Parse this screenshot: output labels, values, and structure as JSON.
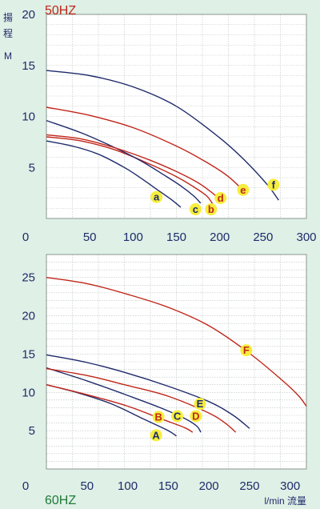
{
  "chart_data": [
    {
      "type": "line",
      "title": "50HZ",
      "ylabel": "揚\n程\nM",
      "xlabel": "",
      "xlim": [
        0,
        300
      ],
      "ylim": [
        0,
        20
      ],
      "xticks": [
        0,
        50,
        100,
        150,
        200,
        250,
        300
      ],
      "yticks": [
        5,
        10,
        15,
        20
      ],
      "grid": true,
      "colors": {
        "navy": "#1f2a6b",
        "red": "#c0261a",
        "badge": "#f6ee3c",
        "title": "#c0261a"
      },
      "series": [
        {
          "name": "a",
          "color": "navy",
          "x": [
            0,
            30,
            60,
            90,
            110,
            130,
            145,
            155
          ],
          "y": [
            7.6,
            7.1,
            6.3,
            5.0,
            3.9,
            2.7,
            1.8,
            1.1
          ]
        },
        {
          "name": "b",
          "color": "red",
          "x": [
            0,
            40,
            80,
            120,
            150,
            170,
            185,
            192
          ],
          "y": [
            8.0,
            7.6,
            6.7,
            5.3,
            4.1,
            3.1,
            2.2,
            1.4
          ]
        },
        {
          "name": "c",
          "color": "navy",
          "x": [
            0,
            40,
            80,
            110,
            135,
            155,
            170,
            178
          ],
          "y": [
            9.6,
            8.4,
            6.9,
            5.6,
            4.3,
            3.2,
            2.2,
            1.5
          ]
        },
        {
          "name": "d",
          "color": "red",
          "x": [
            0,
            40,
            80,
            120,
            150,
            175,
            190,
            200
          ],
          "y": [
            8.2,
            7.8,
            6.9,
            5.7,
            4.6,
            3.5,
            2.6,
            1.9
          ]
        },
        {
          "name": "e",
          "color": "red",
          "x": [
            0,
            50,
            100,
            150,
            185,
            210,
            230
          ],
          "y": [
            10.9,
            10.1,
            8.9,
            7.1,
            5.5,
            4.1,
            2.5
          ]
        },
        {
          "name": "f",
          "color": "navy",
          "x": [
            0,
            50,
            100,
            150,
            200,
            230,
            255,
            268
          ],
          "y": [
            14.5,
            14.0,
            12.9,
            11.0,
            7.9,
            5.6,
            3.3,
            1.8
          ]
        }
      ],
      "labels": [
        {
          "text": "a",
          "x": 127,
          "y": 2.1,
          "color": "navy"
        },
        {
          "text": "c",
          "x": 172,
          "y": 0.9,
          "color": "navy"
        },
        {
          "text": "b",
          "x": 190,
          "y": 0.9,
          "color": "red"
        },
        {
          "text": "d",
          "x": 201,
          "y": 2.0,
          "color": "red"
        },
        {
          "text": "e",
          "x": 227,
          "y": 2.8,
          "color": "red"
        },
        {
          "text": "f",
          "x": 262,
          "y": 3.3,
          "color": "navy"
        }
      ]
    },
    {
      "type": "line",
      "title": "60HZ",
      "ylabel": "",
      "xlabel": "l/min 流量",
      "xlim": [
        0,
        320
      ],
      "ylim": [
        0,
        28
      ],
      "xticks": [
        0,
        50,
        100,
        150,
        200,
        250,
        300
      ],
      "yticks": [
        5,
        10,
        15,
        20,
        25
      ],
      "grid": true,
      "colors": {
        "navy": "#1f2a6b",
        "red": "#c0261a",
        "badge": "#f6ee3c",
        "title": "#1e7a3a"
      },
      "series": [
        {
          "name": "A",
          "color": "navy",
          "x": [
            0,
            40,
            80,
            120,
            150,
            160
          ],
          "y": [
            11.0,
            9.9,
            8.5,
            6.5,
            5.0,
            4.3
          ]
        },
        {
          "name": "B",
          "color": "red",
          "x": [
            0,
            50,
            100,
            140,
            170,
            180
          ],
          "y": [
            11.0,
            9.7,
            8.2,
            6.6,
            5.4,
            4.8
          ]
        },
        {
          "name": "C",
          "color": "navy",
          "x": [
            0,
            50,
            100,
            140,
            170,
            185,
            190
          ],
          "y": [
            13.2,
            11.5,
            9.6,
            8.0,
            6.6,
            5.6,
            4.8
          ]
        },
        {
          "name": "D",
          "color": "red",
          "x": [
            0,
            50,
            100,
            150,
            200,
            220,
            233
          ],
          "y": [
            13.1,
            12.2,
            10.9,
            9.5,
            7.3,
            6.0,
            4.8
          ]
        },
        {
          "name": "E",
          "color": "navy",
          "x": [
            0,
            50,
            100,
            150,
            200,
            230,
            250
          ],
          "y": [
            14.9,
            13.9,
            12.5,
            10.8,
            8.8,
            7.0,
            5.3
          ]
        },
        {
          "name": "F",
          "color": "red",
          "x": [
            0,
            50,
            100,
            150,
            200,
            250,
            290,
            310,
            320
          ],
          "y": [
            25.0,
            24.2,
            22.8,
            21.1,
            18.7,
            15.1,
            11.6,
            9.6,
            8.2
          ]
        }
      ],
      "labels": [
        {
          "text": "A",
          "x": 135,
          "y": 4.4,
          "color": "navy"
        },
        {
          "text": "B",
          "x": 138,
          "y": 6.8,
          "color": "red"
        },
        {
          "text": "C",
          "x": 161,
          "y": 6.9,
          "color": "navy"
        },
        {
          "text": "D",
          "x": 184,
          "y": 6.9,
          "color": "red"
        },
        {
          "text": "E",
          "x": 189,
          "y": 8.5,
          "color": "navy"
        },
        {
          "text": "F",
          "x": 246,
          "y": 15.5,
          "color": "red"
        }
      ]
    }
  ]
}
